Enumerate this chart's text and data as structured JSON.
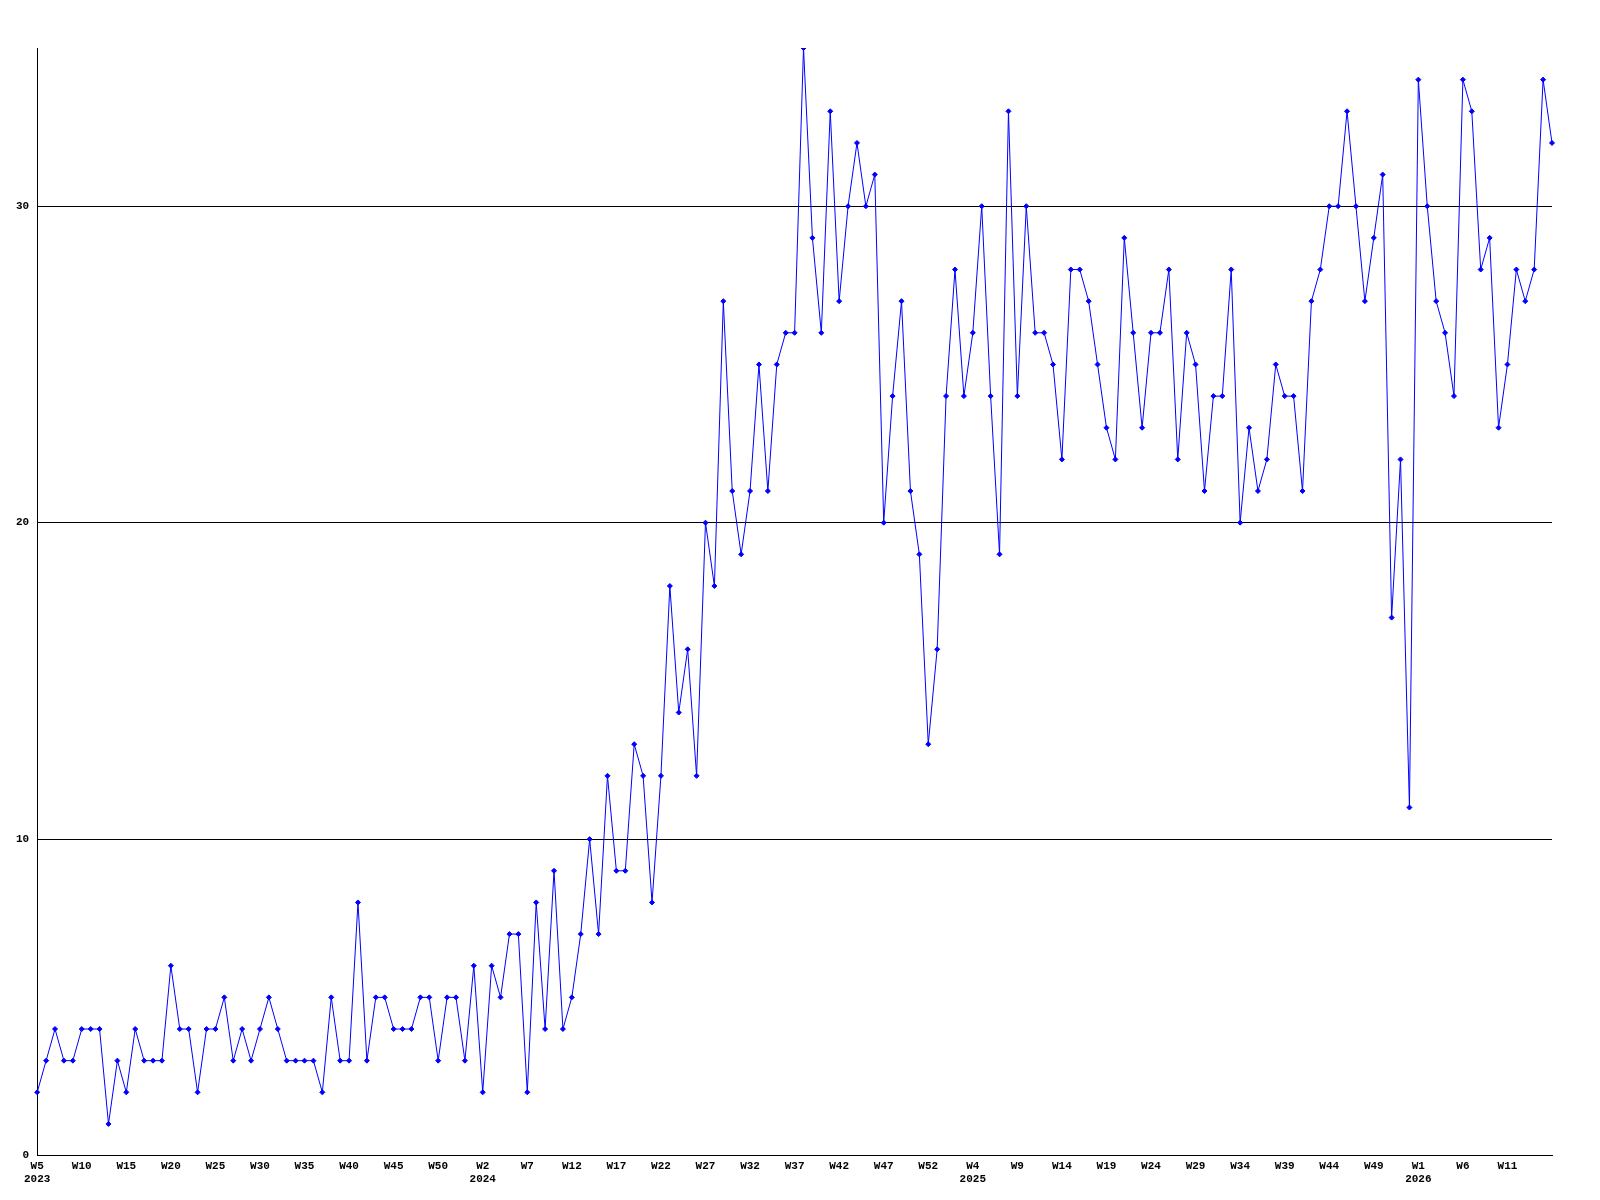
{
  "chart_data": {
    "type": "line",
    "categories": [
      "W5\n2023",
      null,
      null,
      null,
      null,
      "W10",
      null,
      null,
      null,
      null,
      "W15",
      null,
      null,
      null,
      null,
      "W20",
      null,
      null,
      null,
      null,
      "W25",
      null,
      null,
      null,
      null,
      "W30",
      null,
      null,
      null,
      null,
      "W35",
      null,
      null,
      null,
      null,
      "W40",
      null,
      null,
      null,
      null,
      "W45",
      null,
      null,
      null,
      null,
      "W50",
      null,
      null,
      null,
      null,
      "W2\n2024",
      null,
      null,
      null,
      null,
      "W7",
      null,
      null,
      null,
      null,
      "W12",
      null,
      null,
      null,
      null,
      "W17",
      null,
      null,
      null,
      null,
      "W22",
      null,
      null,
      null,
      null,
      "W27",
      null,
      null,
      null,
      null,
      "W32",
      null,
      null,
      null,
      null,
      "W37",
      null,
      null,
      null,
      null,
      "W42",
      null,
      null,
      null,
      null,
      "W47",
      null,
      null,
      null,
      null,
      "W52",
      null,
      null,
      null,
      null,
      "W4\n2025",
      null,
      null,
      null,
      null,
      "W9",
      null,
      null,
      null,
      null,
      "W14",
      null,
      null,
      null,
      null,
      "W19",
      null,
      null,
      null,
      null,
      "W24",
      null,
      null,
      null,
      null,
      "W29",
      null,
      null,
      null,
      null,
      "W34",
      null,
      null,
      null,
      null,
      "W39",
      null,
      null,
      null,
      null,
      "W44",
      null,
      null,
      null,
      null,
      "W49",
      null,
      null,
      null,
      null,
      "W1\n2026",
      null,
      null,
      null,
      null,
      "W6",
      null,
      null,
      null,
      null,
      "W11",
      null,
      null,
      null,
      null,
      null
    ],
    "series": [
      {
        "color": "#0000ff",
        "values": [
          2,
          3,
          4,
          3,
          3,
          4,
          4,
          4,
          1,
          3,
          2,
          4,
          3,
          3,
          3,
          6,
          4,
          4,
          2,
          4,
          4,
          5,
          3,
          4,
          3,
          4,
          5,
          4,
          3,
          3,
          3,
          3,
          2,
          5,
          3,
          3,
          8,
          3,
          5,
          5,
          4,
          4,
          4,
          5,
          5,
          3,
          5,
          5,
          3,
          6,
          2,
          6,
          5,
          7,
          7,
          2,
          8,
          4,
          9,
          4,
          5,
          7,
          10,
          7,
          12,
          9,
          9,
          13,
          12,
          8,
          12,
          18,
          14,
          16,
          12,
          20,
          18,
          27,
          21,
          19,
          21,
          25,
          21,
          25,
          26,
          26,
          35,
          29,
          26,
          33,
          27,
          30,
          32,
          30,
          31,
          20,
          24,
          27,
          21,
          19,
          13,
          16,
          24,
          28,
          24,
          26,
          30,
          24,
          19,
          33,
          24,
          30,
          26,
          26,
          25,
          22,
          28,
          28,
          27,
          25,
          23,
          22,
          29,
          26,
          23,
          26,
          26,
          28,
          22,
          26,
          25,
          21,
          24,
          24,
          28,
          20,
          23,
          21,
          22,
          25,
          24,
          24,
          21,
          27,
          28,
          30,
          30,
          33,
          30,
          27,
          29,
          31,
          17,
          22,
          11,
          34,
          30,
          27,
          26,
          24,
          34,
          33,
          28,
          29,
          23,
          25,
          28,
          27,
          28,
          34,
          32
        ]
      }
    ],
    "ylim": [
      0,
      35
    ],
    "yticks": [
      0,
      10,
      20,
      30
    ],
    "grid": "y",
    "legend": false,
    "marker": "diamond",
    "line_style": "solid"
  }
}
